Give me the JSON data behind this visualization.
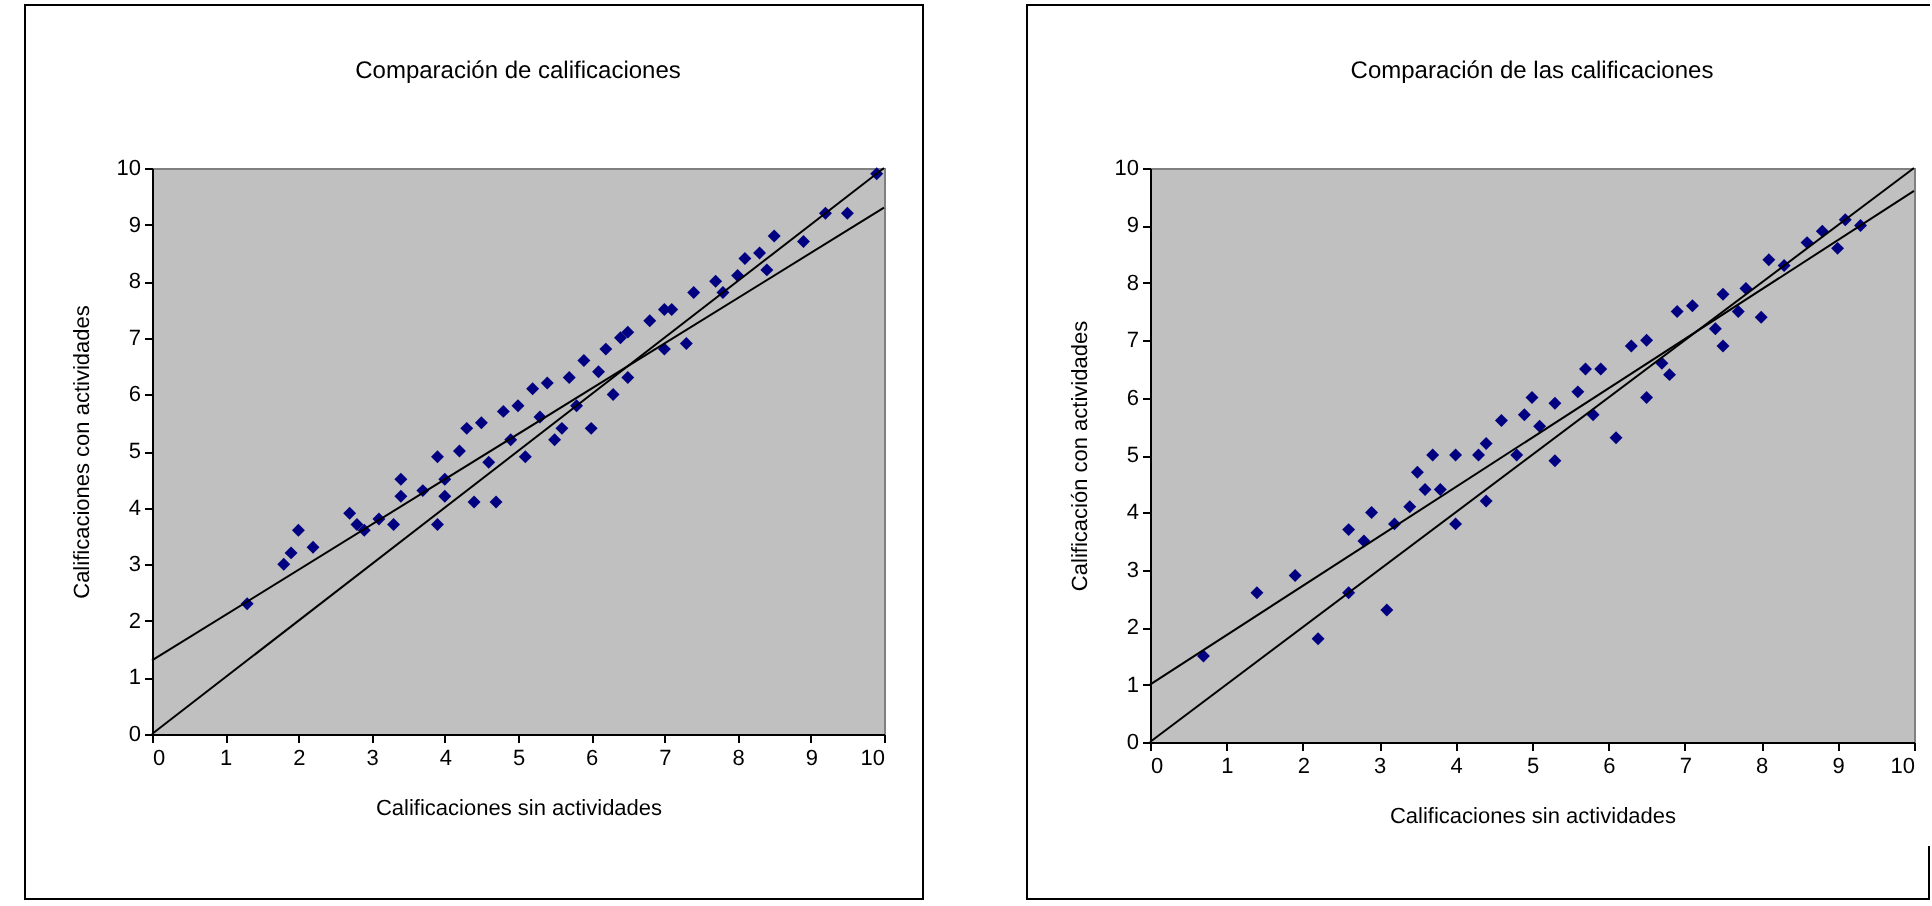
{
  "chart_data": [
    {
      "type": "scatter",
      "title": "Comparación de calificaciones",
      "xlabel": "Calificaciones sin actividades",
      "ylabel": "Calificaciones con actividades",
      "xlim": [
        0,
        10
      ],
      "ylim": [
        0,
        10
      ],
      "xticks": [
        0,
        1,
        2,
        3,
        4,
        5,
        6,
        7,
        8,
        9,
        10
      ],
      "yticks": [
        0,
        1,
        2,
        3,
        4,
        5,
        6,
        7,
        8,
        9,
        10
      ],
      "series": [
        {
          "color": "#000080",
          "marker": "diamond",
          "x": [
            1.3,
            1.8,
            1.9,
            2.0,
            2.2,
            2.7,
            2.8,
            2.9,
            3.1,
            3.3,
            3.4,
            3.4,
            3.7,
            3.9,
            3.9,
            4.0,
            4.0,
            4.2,
            4.3,
            4.4,
            4.5,
            4.6,
            4.7,
            4.8,
            4.9,
            5.0,
            5.1,
            5.2,
            5.3,
            5.4,
            5.5,
            5.6,
            5.7,
            5.8,
            5.9,
            6.0,
            6.1,
            6.2,
            6.3,
            6.4,
            6.5,
            6.5,
            6.8,
            7.0,
            7.0,
            7.1,
            7.3,
            7.4,
            7.7,
            7.8,
            8.0,
            8.1,
            8.3,
            8.4,
            8.5,
            8.9,
            9.2,
            9.5,
            9.9
          ],
          "values": [
            2.3,
            3.0,
            3.2,
            3.6,
            3.3,
            3.9,
            3.7,
            3.6,
            3.8,
            3.7,
            4.2,
            4.5,
            4.3,
            4.9,
            3.7,
            4.5,
            4.2,
            5.0,
            5.4,
            4.1,
            5.5,
            4.8,
            4.1,
            5.7,
            5.2,
            5.8,
            4.9,
            6.1,
            5.6,
            6.2,
            5.2,
            5.4,
            6.3,
            5.8,
            6.6,
            5.4,
            6.4,
            6.8,
            6.0,
            7.0,
            7.1,
            6.3,
            7.3,
            7.5,
            6.8,
            7.5,
            6.9,
            7.8,
            8.0,
            7.8,
            8.1,
            8.4,
            8.5,
            8.2,
            8.8,
            8.7,
            9.2,
            9.2,
            9.9
          ]
        },
        {
          "type": "line",
          "color": "#000000",
          "x": [
            0,
            10
          ],
          "values": [
            0,
            10
          ]
        },
        {
          "type": "line",
          "color": "#000000",
          "x": [
            0,
            10
          ],
          "values": [
            1.3,
            9.3
          ]
        }
      ]
    },
    {
      "type": "scatter",
      "title": "Comparación de las calificaciones",
      "xlabel": "Calificaciones sin actividades",
      "ylabel": "Calificación con actividades",
      "xlim": [
        0,
        10
      ],
      "ylim": [
        0,
        10
      ],
      "xticks": [
        0,
        1,
        2,
        3,
        4,
        5,
        6,
        7,
        8,
        9,
        10
      ],
      "yticks": [
        0,
        1,
        2,
        3,
        4,
        5,
        6,
        7,
        8,
        9,
        10
      ],
      "series": [
        {
          "color": "#000080",
          "marker": "diamond",
          "x": [
            0.7,
            1.4,
            1.9,
            2.2,
            2.6,
            2.6,
            2.8,
            2.9,
            3.1,
            3.2,
            3.4,
            3.5,
            3.6,
            3.7,
            3.8,
            4.0,
            4.0,
            4.3,
            4.4,
            4.4,
            4.6,
            4.8,
            4.9,
            5.0,
            5.1,
            5.3,
            5.3,
            5.6,
            5.7,
            5.8,
            5.9,
            6.1,
            6.3,
            6.5,
            6.5,
            6.7,
            6.8,
            6.9,
            7.1,
            7.4,
            7.5,
            7.5,
            7.7,
            7.8,
            8.0,
            8.1,
            8.3,
            8.6,
            8.8,
            9.0,
            9.1,
            9.3
          ],
          "values": [
            1.5,
            2.6,
            2.9,
            1.8,
            2.6,
            3.7,
            3.5,
            4.0,
            2.3,
            3.8,
            4.1,
            4.7,
            4.4,
            5.0,
            4.4,
            3.8,
            5.0,
            5.0,
            5.2,
            4.2,
            5.6,
            5.0,
            5.7,
            6.0,
            5.5,
            4.9,
            5.9,
            6.1,
            6.5,
            5.7,
            6.5,
            5.3,
            6.9,
            6.0,
            7.0,
            6.6,
            6.4,
            7.5,
            7.6,
            7.2,
            7.8,
            6.9,
            7.5,
            7.9,
            7.4,
            8.4,
            8.3,
            8.7,
            8.9,
            8.6,
            9.1,
            9.0
          ]
        },
        {
          "type": "line",
          "color": "#000000",
          "x": [
            0,
            10
          ],
          "values": [
            0,
            10
          ]
        },
        {
          "type": "line",
          "color": "#000000",
          "x": [
            0,
            10
          ],
          "values": [
            1.0,
            9.6
          ]
        }
      ]
    }
  ]
}
